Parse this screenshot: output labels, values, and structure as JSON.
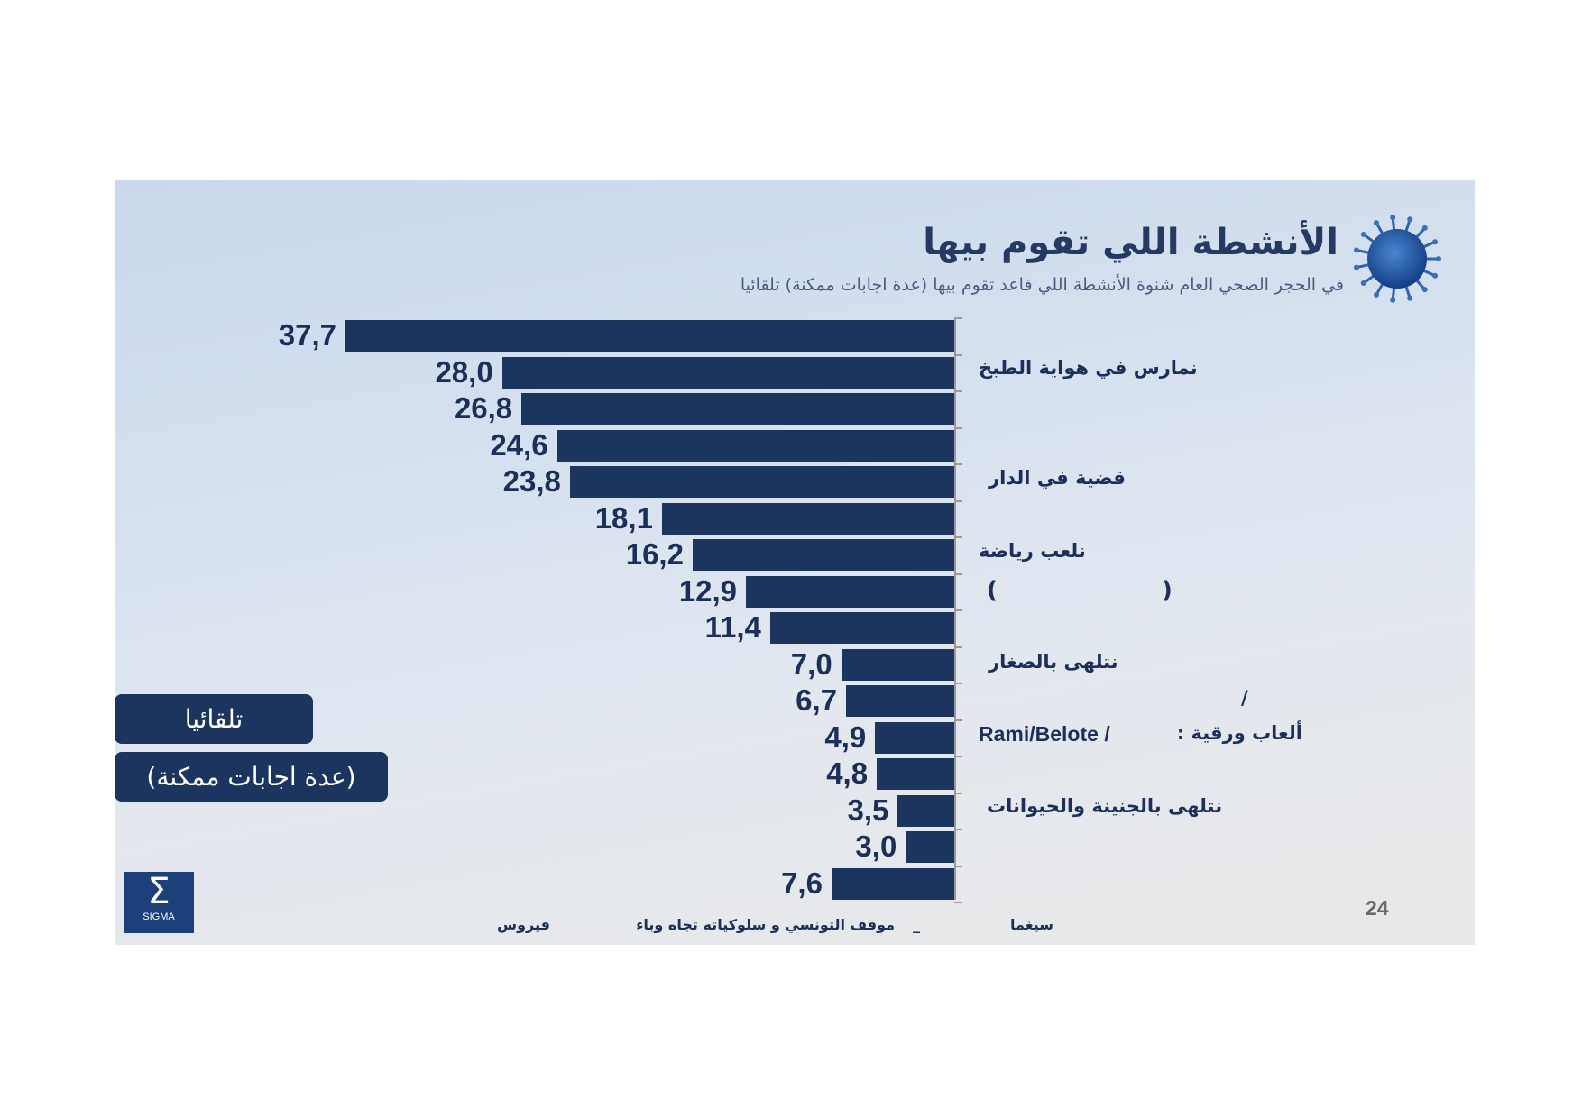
{
  "header": {
    "title": "الأنشطة اللي تقوم بيها",
    "subtitle": "في الحجر الصحي العام شنوة الأنشطة اللي قاعد تقوم بيها (عدة اجابات ممكنة) تلقائيا",
    "icon": "virus-icon"
  },
  "badges": {
    "spontaneous": "تلقائيا",
    "multiple": "(عدة اجابات ممكنة)"
  },
  "labels": {
    "cooking": "نمارس في هواية الطبخ",
    "house": "قضية في الدار",
    "sport": "نلعب رياضة",
    "paren_open": "(",
    "paren_close": ")",
    "kids": "نتلهى بالصغار",
    "slash": "/",
    "cards_ar": "ألعاب ورقية :",
    "cards_lat": "Rami/Belote /",
    "garden": "نتلهى بالجنينة والحيوانات"
  },
  "footer": {
    "brand": "سيغما",
    "dash": "_",
    "study": "موقف التونسي و سلوكياته تجاه وباء",
    "virus": "فيروس",
    "page": "24",
    "logo": "SIGMA"
  },
  "colors": {
    "bar": "#1c355e",
    "text": "#1b2f5a"
  },
  "chart_data": {
    "type": "bar",
    "orientation": "horizontal",
    "values": [
      37.7,
      28.0,
      26.8,
      24.6,
      23.8,
      18.1,
      16.2,
      12.9,
      11.4,
      7.0,
      6.7,
      4.9,
      4.8,
      3.5,
      3.0,
      7.6
    ],
    "value_labels": [
      "37,7",
      "28,0",
      "26,8",
      "24,6",
      "23,8",
      "18,1",
      "16,2",
      "12,9",
      "11,4",
      "7,0",
      "6,7",
      "4,9",
      "4,8",
      "3,5",
      "3,0",
      "7,6"
    ],
    "xlim": [
      0,
      37.7
    ],
    "grid": false,
    "legend": "none"
  }
}
